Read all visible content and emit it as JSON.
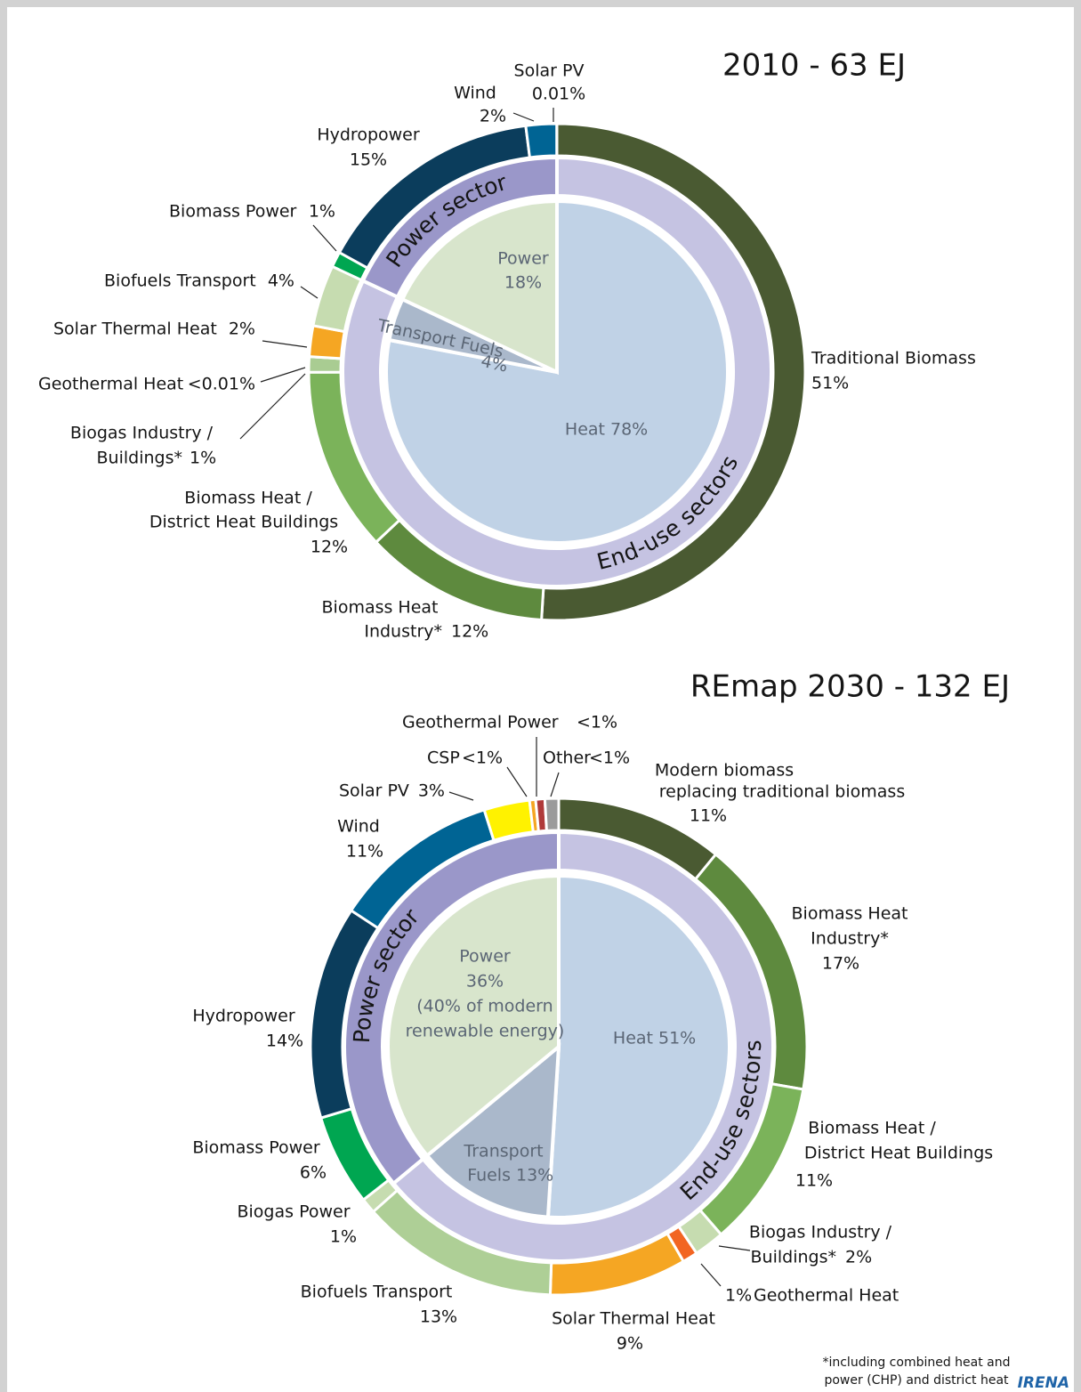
{
  "chart_data": [
    {
      "type": "donut",
      "title": "2010 - 63 EJ",
      "outer": {
        "categories": [
          [
            "Traditional Biomass"
          ],
          [
            "Biomass Heat",
            "Industry*"
          ],
          [
            "Biomass Heat /",
            "District Heat Buildings"
          ],
          [
            "Biogas Industry /",
            "Buildings*"
          ],
          [
            "Geothermal Heat"
          ],
          [
            "Solar Thermal Heat"
          ],
          [
            "Biofuels Transport"
          ],
          [
            "Biomass Power"
          ],
          [
            "Hydropower"
          ],
          [
            "Wind"
          ],
          [
            "Solar PV"
          ]
        ],
        "values": [
          51,
          12,
          12,
          1,
          0.005,
          2,
          4,
          1,
          15,
          2,
          0.01
        ],
        "value_labels": [
          "51%",
          "12%",
          "12%",
          "1%",
          "<0.01%",
          "2%",
          "4%",
          "1%",
          "15%",
          "2%",
          "0.01%"
        ],
        "colors": [
          "#4a5a32",
          "#5e8a3e",
          "#7bb35a",
          "#a9cc92",
          "#e86a2a",
          "#f5a623",
          "#c6dcb0",
          "#00a651",
          "#0b3d5c",
          "#006494",
          "#bbbbbb"
        ]
      },
      "sectors": {
        "categories": [
          "End-use sectors",
          "Power sector"
        ],
        "values": [
          82,
          18
        ],
        "colors": [
          "#c5c3e2",
          "#9a97c9"
        ]
      },
      "pie": {
        "categories": [
          [
            "Heat"
          ],
          [
            "Transport Fuels"
          ],
          [
            "Power"
          ]
        ],
        "values": [
          78,
          4,
          18
        ],
        "value_labels": [
          "78%",
          "4%",
          "18%"
        ],
        "colors": [
          "#c0d2e6",
          "#aab8cb",
          "#d8e5cc"
        ]
      }
    },
    {
      "type": "donut",
      "title": "REmap 2030 - 132 EJ",
      "outer": {
        "categories": [
          [
            "Modern biomass",
            "replacing traditional  biomass"
          ],
          [
            "Biomass Heat",
            "Industry*"
          ],
          [
            "Biomass Heat /",
            "District Heat Buildings"
          ],
          [
            "Biogas Industry /",
            "Buildings*"
          ],
          [
            "Geothermal Heat"
          ],
          [
            "Solar Thermal Heat"
          ],
          [
            "Biofuels Transport"
          ],
          [
            "Biogas Power"
          ],
          [
            "Biomass Power"
          ],
          [
            "Hydropower"
          ],
          [
            "Wind"
          ],
          [
            "Solar PV"
          ],
          [
            "CSP"
          ],
          [
            "Geothermal Power"
          ],
          [
            "Other"
          ]
        ],
        "values": [
          11,
          17,
          11,
          2,
          1,
          9,
          13,
          1,
          6,
          14,
          11,
          3,
          0.4,
          0.6,
          0.9
        ],
        "value_labels": [
          "11%",
          "17%",
          "11%",
          "2%",
          "1%",
          "9%",
          "13%",
          "1%",
          "6%",
          "14%",
          "11%",
          "3%",
          "<1%",
          "<1%",
          "<1%"
        ],
        "colors": [
          "#4a5a32",
          "#5e8a3e",
          "#7bb35a",
          "#c6dcb0",
          "#f26522",
          "#f5a623",
          "#aecf96",
          "#c6dcb0",
          "#00a651",
          "#0b3d5c",
          "#006494",
          "#fff200",
          "#f5a623",
          "#b03a3a",
          "#9b9b9b"
        ]
      },
      "sectors": {
        "categories": [
          "End-use sectors",
          "Power sector"
        ],
        "values": [
          64,
          36
        ],
        "colors": [
          "#c5c3e2",
          "#9a97c9"
        ]
      },
      "pie": {
        "categories": [
          [
            "Heat"
          ],
          [
            "Transport",
            "Fuels"
          ],
          [
            "Power"
          ]
        ],
        "values": [
          51,
          13,
          36
        ],
        "value_labels": [
          "51%",
          "13%",
          "36%"
        ],
        "colors": [
          "#c0d2e6",
          "#aab8cb",
          "#d8e5cc"
        ],
        "note": [
          "(40% of modern",
          "renewable energy)"
        ]
      }
    }
  ],
  "footnote": [
    "*including combined heat and",
    "power (CHP) and district heat"
  ],
  "source": "IRENA"
}
